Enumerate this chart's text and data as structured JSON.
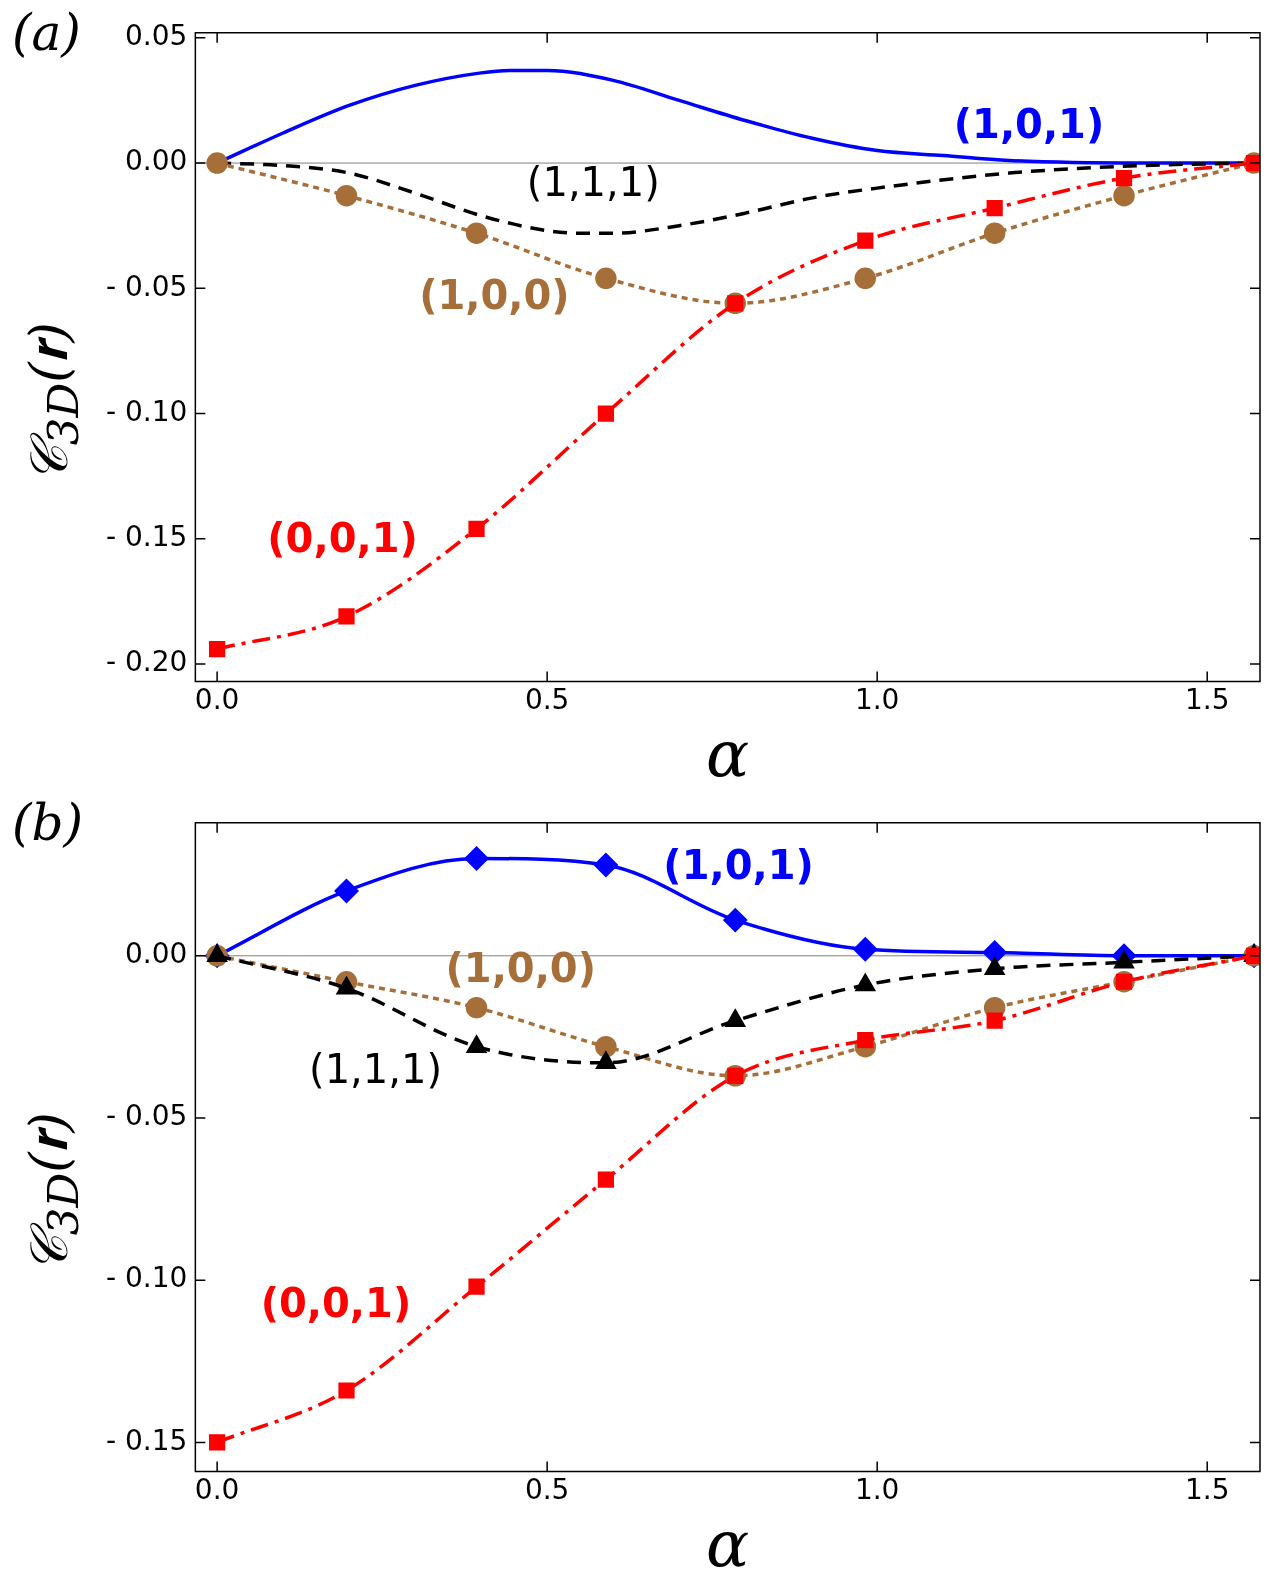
{
  "chart_data": [
    {
      "type": "line",
      "annotations": [
        "(a)"
      ],
      "xlabel": "α",
      "ylabel": "𝒞$_{3D}$(𝐫)",
      "legend": false,
      "grid": false,
      "xlim": [
        -0.033,
        1.58
      ],
      "ylim": [
        -0.207,
        0.052
      ],
      "xticks": [
        {
          "value": 0,
          "label": "0.0"
        },
        {
          "value": 0.5,
          "label": "0.5"
        },
        {
          "value": 1,
          "label": "1.0"
        },
        {
          "value": 1.5,
          "label": "1.5"
        }
      ],
      "yticks": [
        {
          "value": 0.05,
          "label": "0.05"
        },
        {
          "value": 0,
          "label": "0.00"
        },
        {
          "value": -0.05,
          "label": "- 0.05"
        },
        {
          "value": -0.1,
          "label": "- 0.10"
        },
        {
          "value": -0.15,
          "label": "- 0.15"
        },
        {
          "value": -0.2,
          "label": "- 0.20"
        }
      ],
      "ref_lines": [
        {
          "axis": "y",
          "value": 0,
          "color": "#808080"
        }
      ],
      "series": [
        {
          "name": "(1,0,1)",
          "color": "#0000ff",
          "marker": "none",
          "line_style": "solid",
          "x": [
            0,
            0.1,
            0.2,
            0.3,
            0.4,
            0.45,
            0.5,
            0.6,
            0.7,
            0.8,
            0.9,
            1.0,
            1.1,
            1.2,
            1.4,
            1.571
          ],
          "values": [
            0,
            0.012,
            0.023,
            0.031,
            0.036,
            0.037,
            0.037,
            0.033,
            0.025,
            0.017,
            0.01,
            0.005,
            0.003,
            0.001,
            0,
            0
          ]
        },
        {
          "name": "(1,1,1)",
          "color": "#000000",
          "marker": "none",
          "line_style": "dashed",
          "x": [
            0,
            0.1,
            0.2,
            0.3,
            0.4,
            0.5,
            0.55,
            0.6,
            0.7,
            0.8,
            0.9,
            1.0,
            1.2,
            1.4,
            1.571
          ],
          "values": [
            0,
            -0.001,
            -0.004,
            -0.012,
            -0.021,
            -0.027,
            -0.028,
            -0.028,
            -0.025,
            -0.02,
            -0.014,
            -0.01,
            -0.004,
            -0.001,
            0
          ]
        },
        {
          "name": "(1,0,0)",
          "color": "#a66f3a",
          "marker": "circle",
          "line_style": "dotted",
          "x": [
            0,
            0.196,
            0.393,
            0.589,
            0.785,
            0.982,
            1.178,
            1.374,
            1.571
          ],
          "values": [
            0,
            -0.013,
            -0.028,
            -0.046,
            -0.056,
            -0.046,
            -0.028,
            -0.013,
            0
          ]
        },
        {
          "name": "(0,0,1)",
          "color": "#ff0000",
          "marker": "square",
          "line_style": "dashdot",
          "x": [
            0,
            0.196,
            0.393,
            0.589,
            0.785,
            0.982,
            1.178,
            1.374,
            1.571
          ],
          "values": [
            -0.194,
            -0.181,
            -0.146,
            -0.1,
            -0.056,
            -0.031,
            -0.018,
            -0.006,
            0
          ]
        }
      ]
    },
    {
      "type": "line",
      "annotations": [
        "(b)"
      ],
      "xlabel": "α",
      "ylabel": "𝒞$_{3D}$(𝐫)",
      "legend": false,
      "grid": false,
      "xlim": [
        -0.033,
        1.58
      ],
      "ylim": [
        -0.159,
        0.041
      ],
      "xticks": [
        {
          "value": 0,
          "label": "0.0"
        },
        {
          "value": 0.5,
          "label": "0.5"
        },
        {
          "value": 1,
          "label": "1.0"
        },
        {
          "value": 1.5,
          "label": "1.5"
        }
      ],
      "yticks": [
        {
          "value": 0,
          "label": "0.00"
        },
        {
          "value": -0.05,
          "label": "- 0.05"
        },
        {
          "value": -0.1,
          "label": "- 0.10"
        },
        {
          "value": -0.15,
          "label": "- 0.15"
        }
      ],
      "ref_lines": [
        {
          "axis": "y",
          "value": 0,
          "color": "#808080"
        }
      ],
      "series": [
        {
          "name": "(1,0,1)",
          "color": "#0000ff",
          "marker": "diamond",
          "line_style": "solid",
          "x": [
            0,
            0.196,
            0.393,
            0.589,
            0.785,
            0.982,
            1.178,
            1.374,
            1.571
          ],
          "values": [
            0,
            0.02,
            0.03,
            0.028,
            0.011,
            0.002,
            0.001,
            0,
            0
          ]
        },
        {
          "name": "(1,0,0)",
          "color": "#a66f3a",
          "marker": "circle",
          "line_style": "dotted",
          "x": [
            0,
            0.196,
            0.393,
            0.589,
            0.785,
            0.982,
            1.178,
            1.374,
            1.571
          ],
          "values": [
            0,
            -0.008,
            -0.016,
            -0.028,
            -0.037,
            -0.028,
            -0.016,
            -0.008,
            0
          ]
        },
        {
          "name": "(1,1,1)",
          "color": "#000000",
          "marker": "triangle",
          "line_style": "dashed",
          "x": [
            0,
            0.196,
            0.393,
            0.589,
            0.785,
            0.982,
            1.178,
            1.374,
            1.571
          ],
          "values": [
            0,
            -0.01,
            -0.028,
            -0.033,
            -0.02,
            -0.009,
            -0.004,
            -0.002,
            0
          ]
        },
        {
          "name": "(0,0,1)",
          "color": "#ff0000",
          "marker": "square",
          "line_style": "dashdot",
          "x": [
            0,
            0.196,
            0.393,
            0.589,
            0.785,
            0.982,
            1.178,
            1.374,
            1.571
          ],
          "values": [
            -0.15,
            -0.134,
            -0.102,
            -0.069,
            -0.037,
            -0.026,
            -0.02,
            -0.008,
            0
          ]
        }
      ]
    }
  ]
}
